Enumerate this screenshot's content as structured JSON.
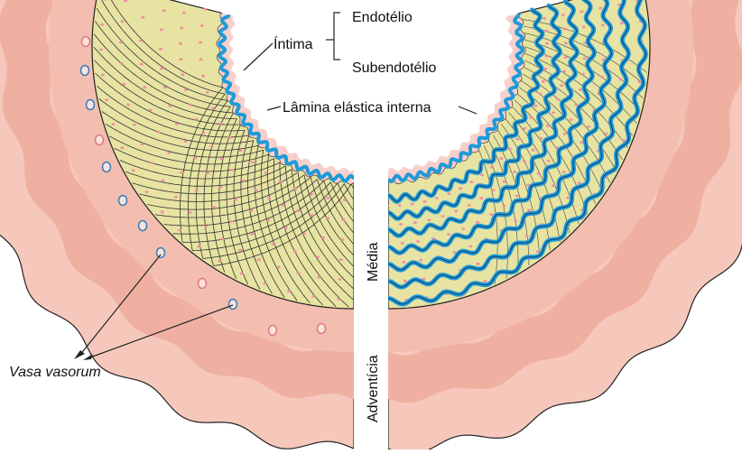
{
  "diagram": {
    "labels": {
      "endotelio": "Endotélio",
      "intima": "Íntima",
      "subendotelio": "Subendotélio",
      "lamina": "Lâmina elástica interna",
      "media": "Média",
      "adventicia": "Adventícia",
      "vasa": "Vasa vasorum"
    },
    "colors": {
      "adventitia_outer": "#f6c8bb",
      "adventitia_mid": "#efb0a2",
      "adventitia_inner": "#f3beb0",
      "media_fill": "#e7e3a2",
      "elastic_blue": "#1f9ad8",
      "cell_pink": "#ef8fa4",
      "vessel_blue": "#3a7fc0",
      "vessel_pink": "#e07a86",
      "line": "#222222"
    },
    "left_panel": {
      "name": "elastic-artery-muscular-section"
    },
    "right_panel": {
      "name": "elastic-artery-lamellar-section"
    }
  }
}
